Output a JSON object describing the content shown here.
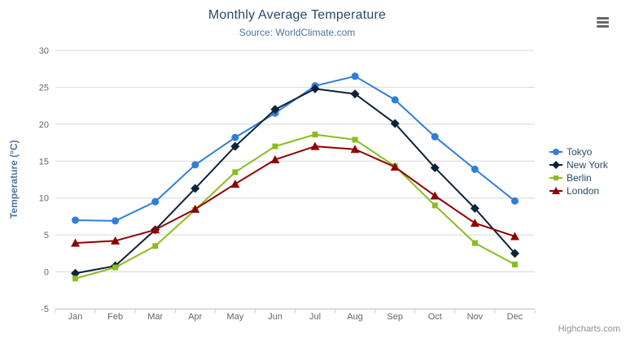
{
  "chart": {
    "title": "Monthly Average Temperature",
    "subtitle": "Source: WorldClimate.com",
    "credits": "Highcharts.com",
    "context_menu_icon": "hamburger-icon"
  },
  "colors": {
    "title": "#274b6d",
    "subtitle": "#4d759e",
    "axis_title": "#4d759e",
    "axis_label": "#666666",
    "grid_line": "#d8d8d8",
    "axis_line": "#c0d0e0",
    "legend_text": "#274b6d",
    "credits": "#909090",
    "background": "#ffffff"
  },
  "chart_data": {
    "type": "line",
    "title": "Monthly Average Temperature",
    "subtitle": "Source: WorldClimate.com",
    "categories": [
      "Jan",
      "Feb",
      "Mar",
      "Apr",
      "May",
      "Jun",
      "Jul",
      "Aug",
      "Sep",
      "Oct",
      "Nov",
      "Dec"
    ],
    "series": [
      {
        "name": "Tokyo",
        "color": "#2f7ed8",
        "marker": "circle",
        "values": [
          7.0,
          6.9,
          9.5,
          14.5,
          18.2,
          21.5,
          25.2,
          26.5,
          23.3,
          18.3,
          13.9,
          9.6
        ]
      },
      {
        "name": "New York",
        "color": "#0d233a",
        "marker": "diamond",
        "values": [
          -0.2,
          0.8,
          5.7,
          11.3,
          17.0,
          22.0,
          24.8,
          24.1,
          20.1,
          14.1,
          8.6,
          2.5
        ]
      },
      {
        "name": "Berlin",
        "color": "#8bbc21",
        "marker": "square",
        "values": [
          -0.9,
          0.6,
          3.5,
          8.4,
          13.5,
          17.0,
          18.6,
          17.9,
          14.3,
          9.0,
          3.9,
          1.0
        ]
      },
      {
        "name": "London",
        "color": "#910000",
        "marker": "triangle",
        "values": [
          3.9,
          4.2,
          5.7,
          8.5,
          11.9,
          15.2,
          17.0,
          16.6,
          14.2,
          10.3,
          6.6,
          4.8
        ]
      }
    ],
    "xlabel": "",
    "ylabel": "Temperature (°C)",
    "ylim": [
      -5,
      30
    ],
    "ytick_step": 5,
    "yticks": [
      "-5",
      "0",
      "5",
      "10",
      "15",
      "20",
      "25",
      "30"
    ],
    "grid": true,
    "legend_position": "right"
  }
}
